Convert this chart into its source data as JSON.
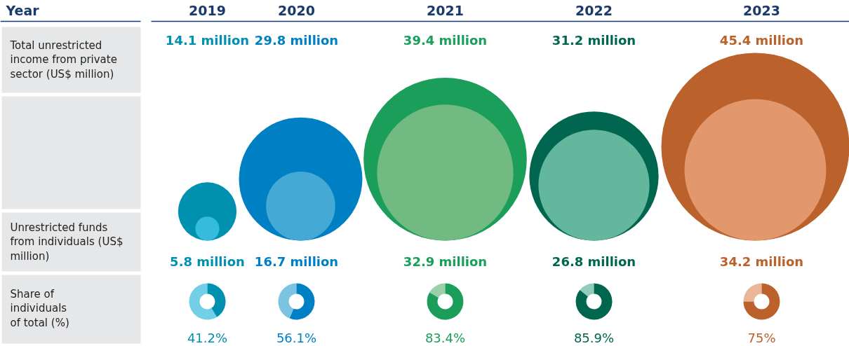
{
  "chart_data": {
    "type": "other",
    "xlabel": "Year",
    "categories": [
      "2019",
      "2020",
      "2021",
      "2022",
      "2023"
    ],
    "series": [
      {
        "name": "Total unrestricted income from private sector (US$ million)",
        "type": "bubble",
        "colors": [
          "#0090b0",
          "#0080c4",
          "#1a9e5a",
          "#006650",
          "#bb612b"
        ],
        "values": [
          14.1,
          29.8,
          39.4,
          31.2,
          45.4
        ],
        "value_labels": [
          "14.1 million",
          "29.8 million",
          "39.4 million",
          "31.2 million",
          "45.4 million"
        ]
      },
      {
        "name": "Unrestricted funds from individuals (US$ million)",
        "type": "bubble",
        "colors": [
          "#35bbdd",
          "#45a9d6",
          "#71bb82",
          "#62b79c",
          "#e3976c"
        ],
        "values": [
          5.8,
          16.7,
          32.9,
          26.8,
          34.2
        ],
        "value_labels": [
          "5.8 million",
          "16.7 million",
          "32.9 million",
          "26.8 million",
          "34.2 million"
        ]
      },
      {
        "name": "Share of individuals of total (%)",
        "type": "donut",
        "colors": [
          "#0090b0",
          "#0080c4",
          "#1a9e5a",
          "#006650",
          "#bb612b"
        ],
        "values": [
          41.2,
          56.1,
          83.4,
          85.9,
          75
        ],
        "value_labels": [
          "41.2%",
          "56.1%",
          "83.4%",
          "85.9%",
          "75%"
        ]
      }
    ]
  }
}
